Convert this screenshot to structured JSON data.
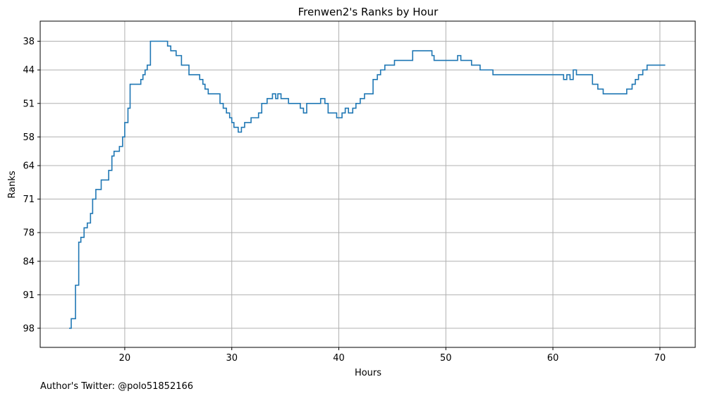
{
  "chart_data": {
    "type": "line",
    "title": "Frenwen2's Ranks by Hour",
    "xlabel": "Hours",
    "ylabel": "Ranks",
    "footnote": "Author's Twitter: @polo51852166",
    "xlim": [
      12.1,
      73.3
    ],
    "ylim": [
      102,
      33.8
    ],
    "y_inverted": true,
    "grid": true,
    "step": true,
    "x_ticks": [
      20,
      30,
      40,
      50,
      60,
      70
    ],
    "y_ticks": [
      38,
      44,
      51,
      58,
      64,
      71,
      78,
      84,
      91,
      98
    ],
    "x_tick_labels": [
      "20",
      "30",
      "40",
      "50",
      "60",
      "70"
    ],
    "y_tick_labels": [
      "38",
      "44",
      "51",
      "58",
      "64",
      "71",
      "78",
      "84",
      "91",
      "98"
    ],
    "colors": {
      "series": "#1f77b4",
      "grid": "#b0b0b0"
    },
    "series": [
      {
        "x": [
          14.8,
          15.0,
          15.4,
          15.7,
          15.9,
          16.2,
          16.5,
          16.8,
          17.0,
          17.3,
          17.8,
          18.5,
          18.8,
          19.0,
          19.5,
          19.8,
          20.0,
          20.3,
          20.5,
          21.5,
          21.7,
          21.9,
          22.1,
          22.4,
          23.8,
          24.0,
          24.3,
          24.8,
          25.3,
          26.0,
          27.0,
          27.3,
          27.5,
          27.8,
          28.9,
          29.2,
          29.5,
          29.8,
          30.0,
          30.2,
          30.6,
          30.9,
          31.2,
          31.8,
          32.5,
          32.8,
          33.3,
          33.8,
          34.1,
          34.3,
          34.6,
          35.3,
          36.4,
          36.7,
          37.0,
          38.3,
          38.7,
          39.0,
          39.8,
          40.3,
          40.6,
          40.9,
          41.3,
          41.6,
          42.0,
          42.4,
          43.2,
          43.6,
          43.9,
          44.3,
          45.2,
          46.9,
          48.7,
          48.9,
          51.1,
          51.4,
          52.4,
          53.2,
          54.4,
          57.7,
          60.4,
          61.0,
          61.3,
          61.6,
          61.9,
          62.2,
          63.7,
          64.2,
          64.7,
          65.6,
          66.9,
          67.4,
          67.7,
          68.0,
          68.4,
          68.8,
          70.5
        ],
        "y": [
          98,
          96,
          89,
          80,
          79,
          77,
          76,
          74,
          71,
          69,
          67,
          65,
          62,
          61,
          60,
          58,
          55,
          52,
          47,
          46,
          45,
          44,
          43,
          38,
          38,
          39,
          40,
          41,
          43,
          45,
          46,
          47,
          48,
          49,
          51,
          52,
          53,
          54,
          55,
          56,
          57,
          56,
          55,
          54,
          53,
          51,
          50,
          49,
          50,
          49,
          50,
          51,
          52,
          53,
          51,
          50,
          51,
          53,
          54,
          53,
          52,
          53,
          52,
          51,
          50,
          49,
          46,
          45,
          44,
          43,
          42,
          40,
          41,
          42,
          41,
          42,
          43,
          44,
          45,
          45,
          45,
          46,
          45,
          46,
          44,
          45,
          47,
          48,
          49,
          49,
          48,
          47,
          46,
          45,
          44,
          43,
          43
        ]
      }
    ]
  }
}
